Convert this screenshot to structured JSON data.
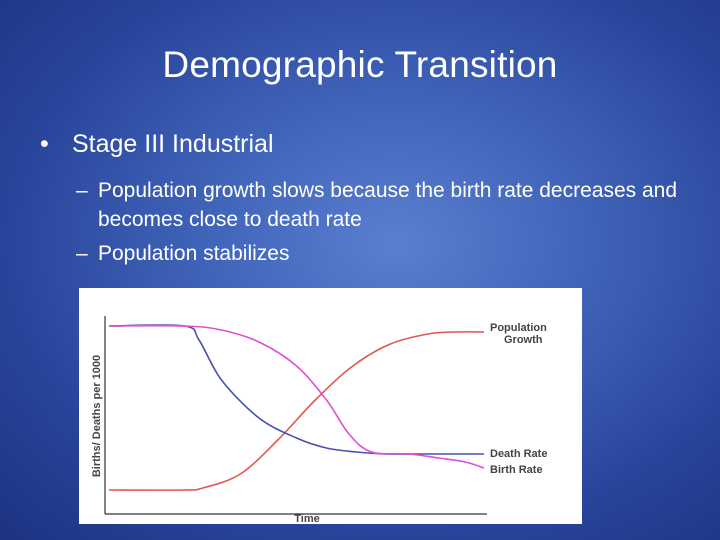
{
  "slide": {
    "title": "Demographic Transition",
    "bullet": "Stage III Industrial",
    "sub_bullets": [
      "Population growth slows because the birth rate decreases and becomes close to death rate",
      "Population stabilizes"
    ]
  },
  "chart_data": {
    "type": "line",
    "xlabel": "Time",
    "ylabel": "Births/ Deaths per 1000",
    "ylim": [
      0,
      100
    ],
    "xlim": [
      0,
      100
    ],
    "grid": false,
    "series": [
      {
        "name": "Population Growth",
        "color": "#e0574f",
        "x": [
          0,
          20,
          25,
          35,
          45,
          55,
          65,
          75,
          85,
          92,
          100
        ],
        "values": [
          10,
          10,
          11,
          18,
          35,
          55,
          72,
          83,
          88,
          89,
          89
        ]
      },
      {
        "name": "Death Rate",
        "color": "#4a4fb0",
        "x": [
          0,
          20,
          24,
          30,
          40,
          50,
          58,
          66,
          74,
          84,
          92,
          100
        ],
        "values": [
          92,
          92,
          85,
          65,
          46,
          36,
          31,
          29,
          28,
          28,
          28,
          28
        ]
      },
      {
        "name": "Birth Rate",
        "color": "#e04fd4",
        "x": [
          0,
          20,
          30,
          40,
          50,
          58,
          64,
          70,
          80,
          88,
          95,
          100
        ],
        "values": [
          92,
          92,
          90,
          84,
          72,
          55,
          38,
          29,
          28,
          26,
          24,
          21
        ]
      }
    ]
  }
}
